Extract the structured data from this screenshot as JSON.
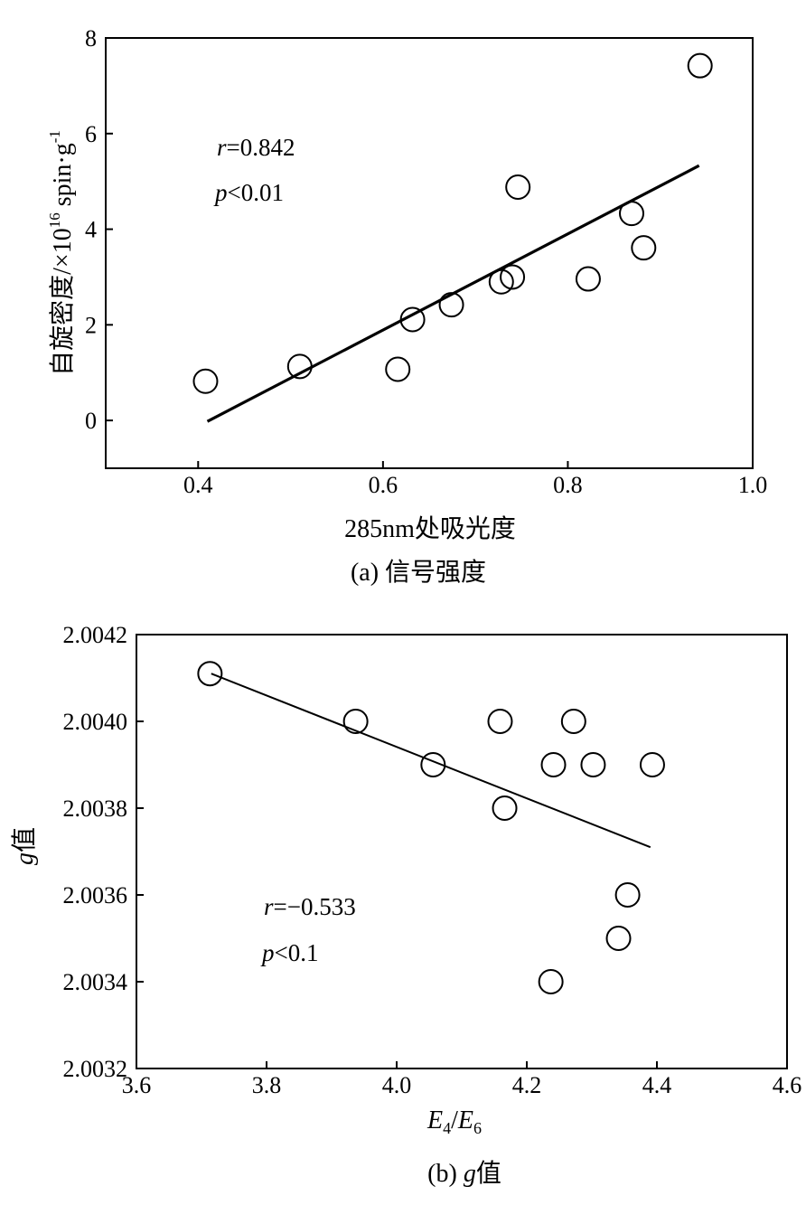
{
  "chart_data": [
    {
      "type": "scatter",
      "caption": "(a) 信号强度",
      "xlabel": "285nm处吸光度",
      "ylabel": "自旋密度/×10",
      "ylabel_sup": "16",
      "ylabel_unit": " spin·g",
      "ylabel_unit_sup": "-1",
      "xlim": [
        0.3,
        1.0
      ],
      "ylim": [
        -1,
        8
      ],
      "xticks": [
        0.4,
        0.6,
        0.8,
        1.0
      ],
      "xtick_labels": [
        "0.4",
        "0.6",
        "0.8",
        "1.0"
      ],
      "yticks": [
        0,
        2,
        4,
        6,
        8
      ],
      "ytick_labels": [
        "0",
        "2",
        "4",
        "6",
        "8"
      ],
      "points": [
        {
          "x": 0.408,
          "y": 0.82
        },
        {
          "x": 0.51,
          "y": 1.13
        },
        {
          "x": 0.616,
          "y": 1.07
        },
        {
          "x": 0.632,
          "y": 2.11
        },
        {
          "x": 0.674,
          "y": 2.42
        },
        {
          "x": 0.728,
          "y": 2.9
        },
        {
          "x": 0.74,
          "y": 3.0
        },
        {
          "x": 0.746,
          "y": 4.88
        },
        {
          "x": 0.822,
          "y": 2.96
        },
        {
          "x": 0.869,
          "y": 4.33
        },
        {
          "x": 0.882,
          "y": 3.61
        },
        {
          "x": 0.943,
          "y": 7.42
        }
      ],
      "fit_line": [
        {
          "x": 0.41,
          "y": -0.02
        },
        {
          "x": 0.942,
          "y": 5.33
        }
      ],
      "r_symbol": "r",
      "r_text": "=0.842",
      "p_symbol": "p",
      "p_text": "<0.01",
      "grid": false
    },
    {
      "type": "scatter",
      "caption_prefix": "(b) ",
      "caption_italic": "g",
      "caption_suffix": "值",
      "xlabel_parts": [
        "E",
        "4",
        "/",
        "E",
        "6"
      ],
      "ylabel_italic": "g",
      "ylabel_suffix": "值",
      "xlim": [
        3.6,
        4.6
      ],
      "ylim": [
        2.0032,
        2.0042
      ],
      "xticks": [
        3.6,
        3.8,
        4.0,
        4.2,
        4.4,
        4.6
      ],
      "xtick_labels": [
        "3.6",
        "3.8",
        "4.0",
        "4.2",
        "4.4",
        "4.6"
      ],
      "yticks": [
        2.0032,
        2.0034,
        2.0036,
        2.0038,
        2.004,
        2.0042
      ],
      "ytick_labels": [
        "2.0032",
        "2.0034",
        "2.0036",
        "2.0038",
        "2.0040",
        "2.0042"
      ],
      "points": [
        {
          "x": 3.713,
          "y": 2.00411
        },
        {
          "x": 3.937,
          "y": 2.004
        },
        {
          "x": 4.056,
          "y": 2.0039
        },
        {
          "x": 4.159,
          "y": 2.004
        },
        {
          "x": 4.166,
          "y": 2.0038
        },
        {
          "x": 4.241,
          "y": 2.0039
        },
        {
          "x": 4.272,
          "y": 2.004
        },
        {
          "x": 4.302,
          "y": 2.0039
        },
        {
          "x": 4.393,
          "y": 2.0039
        },
        {
          "x": 4.355,
          "y": 2.0036
        },
        {
          "x": 4.341,
          "y": 2.0035
        },
        {
          "x": 4.237,
          "y": 2.0034
        }
      ],
      "fit_line": [
        {
          "x": 3.715,
          "y": 2.00411
        },
        {
          "x": 4.39,
          "y": 2.00371
        }
      ],
      "r_symbol": "r",
      "r_text": "=−0.533",
      "p_symbol": "p",
      "p_text": "<0.1",
      "grid": false
    }
  ]
}
